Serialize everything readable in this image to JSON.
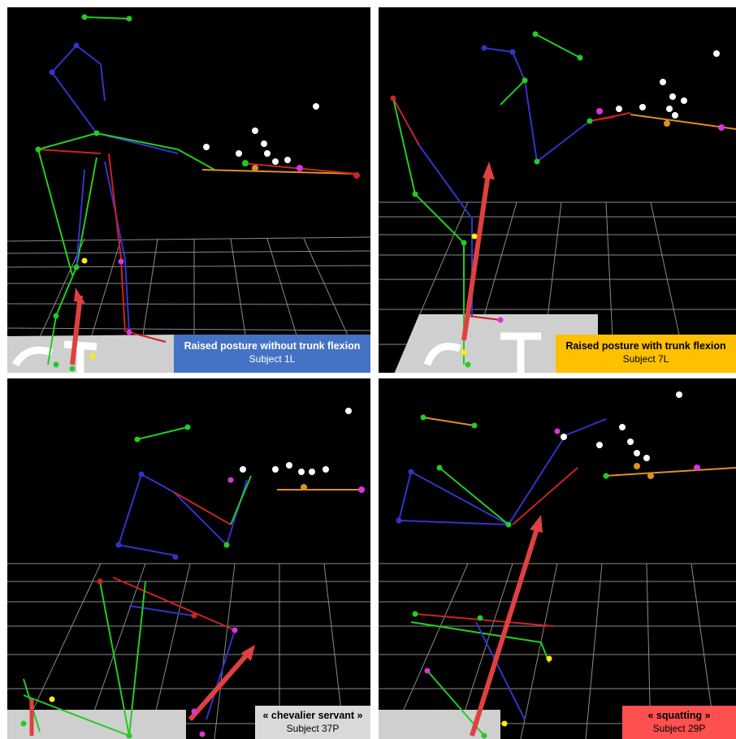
{
  "panels": [
    {
      "id": "top-left",
      "posture": "Raised posture without trunk flexion",
      "subject": "Subject 1L",
      "label_bg": "#4472c4",
      "label_fg": "#ffffff"
    },
    {
      "id": "top-right",
      "posture": "Raised posture with trunk flexion",
      "subject": "Subject 7L",
      "label_bg": "#ffc000",
      "label_fg": "#000000"
    },
    {
      "id": "bottom-left",
      "posture": "« chevalier servant »",
      "subject": "Subject 37P",
      "label_bg": "#d9d9d9",
      "label_fg": "#000000"
    },
    {
      "id": "bottom-right",
      "posture": "« squatting »",
      "subject": "Subject 29P",
      "label_bg": "#ff5050",
      "label_fg": "#000000"
    }
  ],
  "colors": {
    "segment_green": "#22cc22",
    "segment_blue": "#3333cc",
    "segment_red": "#cc2222",
    "force_arrow": "#e04040",
    "marker_white": "#ffffff",
    "marker_magenta": "#dd33dd",
    "marker_orange": "#e09020",
    "marker_yellow": "#ffee00",
    "grid": "#8a8a8a",
    "floor": "#cfcfcf"
  }
}
